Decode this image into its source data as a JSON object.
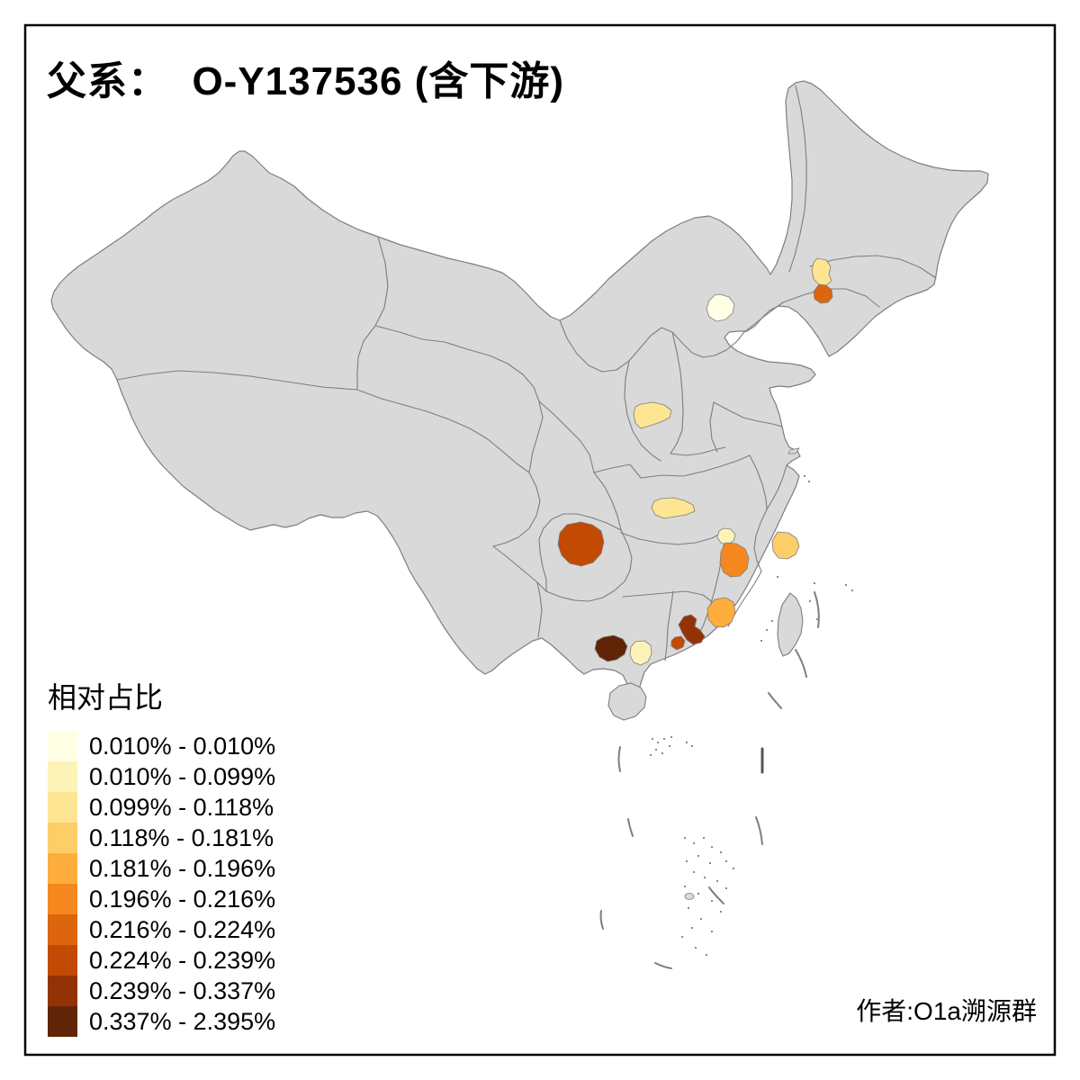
{
  "title": "父系：  O-Y137536 (含下游)",
  "author": "作者:O1a溯源群",
  "legend": {
    "title": "相对占比",
    "items": [
      {
        "range": "0.010% - 0.010%",
        "color": "#FFFFE5"
      },
      {
        "range": "0.010% - 0.099%",
        "color": "#FDF3B9"
      },
      {
        "range": "0.099% - 0.118%",
        "color": "#FDE593"
      },
      {
        "range": "0.118% - 0.181%",
        "color": "#FDCE67"
      },
      {
        "range": "0.181% - 0.196%",
        "color": "#FDAD3C"
      },
      {
        "range": "0.196% - 0.216%",
        "color": "#F4881E"
      },
      {
        "range": "0.216% - 0.224%",
        "color": "#DD650D"
      },
      {
        "range": "0.224% - 0.239%",
        "color": "#C24A03"
      },
      {
        "range": "0.239% - 0.337%",
        "color": "#933305"
      },
      {
        "range": "0.337% - 2.395%",
        "color": "#5F2506"
      }
    ]
  },
  "map": {
    "base_fill": "#D9D9D9",
    "border_color": "#7E7E7E",
    "frame_color": "#000000",
    "sea_color": "#FFFFFF",
    "regions": [
      {
        "id": "beijing",
        "range": "0.010% - 0.010%",
        "color": "#FFFFE5"
      },
      {
        "id": "liaoning-north",
        "range": "0.099% - 0.118%",
        "color": "#FDE593"
      },
      {
        "id": "liaoning-south",
        "range": "0.216% - 0.224%",
        "color": "#DD650D"
      },
      {
        "id": "shanxi-south",
        "range": "0.099% - 0.118%",
        "color": "#FDE593"
      },
      {
        "id": "hubei-northwest",
        "range": "0.099% - 0.118%",
        "color": "#FDE593"
      },
      {
        "id": "hunan-northeast",
        "range": "0.010% - 0.099%",
        "color": "#FDF3B9"
      },
      {
        "id": "jiangxi-west",
        "range": "0.196% - 0.216%",
        "color": "#F4881E"
      },
      {
        "id": "zhejiang-central",
        "range": "0.118% - 0.181%",
        "color": "#FDCE67"
      },
      {
        "id": "guizhou-central",
        "range": "0.224% - 0.239%",
        "color": "#C24A03"
      },
      {
        "id": "guangdong-east",
        "range": "0.181% - 0.196%",
        "color": "#FDAD3C"
      },
      {
        "id": "guangdong-guangzhou",
        "range": "0.239% - 0.337%",
        "color": "#933305"
      },
      {
        "id": "guangdong-foshan",
        "range": "0.224% - 0.239%",
        "color": "#C24A03"
      },
      {
        "id": "guangxi-southwest",
        "range": "0.337% - 2.395%",
        "color": "#5F2506"
      },
      {
        "id": "guangxi-south",
        "range": "0.010% - 0.099%",
        "color": "#FDF3B9"
      }
    ]
  }
}
